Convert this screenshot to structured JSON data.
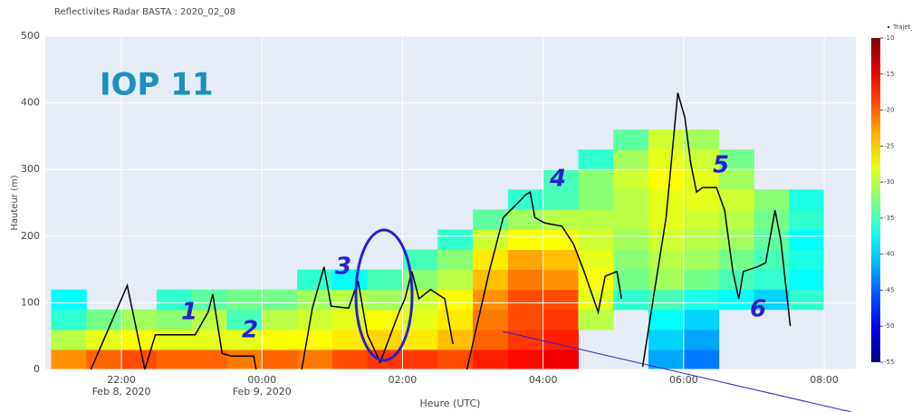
{
  "chart_data": {
    "type": "heatmap",
    "title": "Reflectivites Radar BASTA : 2020_02_08",
    "xlabel": "Heure (UTC)",
    "ylabel": "Hauteur (m)",
    "xlim": [
      "2020-02-08 20:55",
      "2020-02-09 08:27"
    ],
    "xticks": [
      {
        "value": "2020-02-08 22:00",
        "label": "22:00",
        "sublabel": "Feb 8, 2020"
      },
      {
        "value": "2020-02-09 00:00",
        "label": "00:00",
        "sublabel": "Feb 9, 2020"
      },
      {
        "value": "2020-02-09 02:00",
        "label": "02:00"
      },
      {
        "value": "2020-02-09 04:00",
        "label": "04:00"
      },
      {
        "value": "2020-02-09 06:00",
        "label": "06:00"
      },
      {
        "value": "2020-02-09 08:00",
        "label": "08:00"
      }
    ],
    "ylim": [
      0,
      500
    ],
    "yticks": [
      0,
      100,
      200,
      300,
      400,
      500
    ],
    "grid": true,
    "colorscale": "Jet",
    "zlim": [
      -55,
      -10
    ],
    "zticks": [
      -10,
      -15,
      -20,
      -25,
      -30,
      -35,
      -40,
      -45,
      -50,
      -55
    ],
    "x": [
      "2020-02-08 21:00",
      "2020-02-08 21:30",
      "2020-02-08 22:00",
      "2020-02-08 22:30",
      "2020-02-08 23:00",
      "2020-02-08 23:30",
      "2020-02-09 00:00",
      "2020-02-09 00:30",
      "2020-02-09 01:00",
      "2020-02-09 01:30",
      "2020-02-09 02:00",
      "2020-02-09 02:30",
      "2020-02-09 03:00",
      "2020-02-09 03:30",
      "2020-02-09 04:00",
      "2020-02-09 04:30",
      "2020-02-09 05:00",
      "2020-02-09 05:30",
      "2020-02-09 06:00",
      "2020-02-09 06:30",
      "2020-02-09 07:00",
      "2020-02-09 07:30"
    ],
    "y": [
      15,
      45,
      75,
      105,
      135,
      165,
      195,
      225,
      255,
      285,
      315,
      345
    ],
    "z": [
      [
        -22,
        -20,
        -19,
        -20,
        -20,
        -21,
        -20,
        -21,
        -19,
        -18,
        -18,
        -19,
        -17,
        -16,
        -15,
        null,
        null,
        -42,
        -44,
        null,
        null,
        null
      ],
      [
        -30,
        -28,
        -27,
        -28,
        -28,
        -28,
        -27,
        -27,
        -26,
        -25,
        -26,
        -24,
        -20,
        -18,
        -17,
        null,
        null,
        -40,
        -42,
        null,
        null,
        null
      ],
      [
        -36,
        -33,
        -31,
        -32,
        -30,
        -35,
        -30,
        -29,
        -28,
        -27,
        -28,
        -26,
        -21,
        -19,
        -18,
        -30,
        null,
        -38,
        -40,
        null,
        null,
        null
      ],
      [
        -38,
        null,
        null,
        -36,
        -34,
        -33,
        -33,
        -31,
        -30,
        -31,
        -29,
        -27,
        -22,
        -19,
        -19,
        -28,
        -36,
        -35,
        -37,
        -38,
        -40,
        -36
      ],
      [
        null,
        null,
        null,
        null,
        null,
        null,
        null,
        -36,
        -38,
        -35,
        -32,
        -30,
        -24,
        -21,
        -22,
        -27,
        -33,
        -31,
        -33,
        -35,
        -36,
        -38
      ],
      [
        null,
        null,
        null,
        null,
        null,
        null,
        null,
        null,
        null,
        null,
        -35,
        -32,
        -26,
        -23,
        -24,
        -28,
        -32,
        -30,
        -31,
        -33,
        -35,
        -37
      ],
      [
        null,
        null,
        null,
        null,
        null,
        null,
        null,
        null,
        null,
        null,
        null,
        -36,
        -29,
        -27,
        -27,
        -29,
        -31,
        -29,
        -30,
        -31,
        -34,
        -38
      ],
      [
        null,
        null,
        null,
        null,
        null,
        null,
        null,
        null,
        null,
        null,
        null,
        null,
        -34,
        -31,
        -30,
        -30,
        -30,
        -28,
        -29,
        -30,
        -33,
        -36
      ],
      [
        null,
        null,
        null,
        null,
        null,
        null,
        null,
        null,
        null,
        null,
        null,
        null,
        null,
        -36,
        -35,
        -32,
        -30,
        -28,
        -28,
        -29,
        -32,
        -37
      ],
      [
        null,
        null,
        null,
        null,
        null,
        null,
        null,
        null,
        null,
        null,
        null,
        null,
        null,
        null,
        -35,
        -32,
        -29,
        -27,
        -28,
        -31,
        null,
        null
      ],
      [
        null,
        null,
        null,
        null,
        null,
        null,
        null,
        null,
        null,
        null,
        null,
        null,
        null,
        null,
        null,
        -36,
        -31,
        -28,
        -29,
        -33,
        null,
        null
      ],
      [
        null,
        null,
        null,
        null,
        null,
        null,
        null,
        null,
        null,
        null,
        null,
        null,
        null,
        null,
        null,
        null,
        -34,
        -29,
        -31,
        null,
        null,
        null
      ]
    ],
    "series": [
      {
        "name": "Trajet_CD",
        "color": "#000000",
        "x": [
          "2020-02-08 21:34",
          "2020-02-08 22:05",
          "2020-02-08 22:20",
          "2020-02-08 22:29",
          "2020-02-08 22:43",
          "2020-02-08 23:03",
          "2020-02-08 23:14",
          "2020-02-08 23:18",
          "2020-02-08 23:26",
          "2020-02-08 23:34",
          "2020-02-08 23:53",
          "2020-02-08 23:55",
          "2020-02-09 00:15",
          "2020-02-09 00:34",
          "2020-02-09 00:43",
          "2020-02-09 00:53",
          "2020-02-09 00:59",
          "2020-02-09 01:14",
          "2020-02-09 01:22",
          "2020-02-09 01:30",
          "2020-02-09 01:41",
          "2020-02-09 01:57",
          "2020-02-09 02:02",
          "2020-02-09 02:08",
          "2020-02-09 02:14",
          "2020-02-09 02:24",
          "2020-02-09 02:36",
          "2020-02-09 02:43",
          "2020-02-09 02:50",
          "2020-02-09 02:55",
          "2020-02-09 03:14",
          "2020-02-09 03:26",
          "2020-02-09 03:38",
          "2020-02-09 03:45",
          "2020-02-09 03:49",
          "2020-02-09 03:53",
          "2020-02-09 04:01",
          "2020-02-09 04:16",
          "2020-02-09 04:26",
          "2020-02-09 04:35",
          "2020-02-09 04:47",
          "2020-02-09 04:53",
          "2020-02-09 05:03",
          "2020-02-09 05:07",
          "2020-02-09 05:15",
          "2020-02-09 05:25",
          "2020-02-09 05:34",
          "2020-02-09 05:45",
          "2020-02-09 05:55",
          "2020-02-09 06:01",
          "2020-02-09 06:06",
          "2020-02-09 06:11",
          "2020-02-09 06:16",
          "2020-02-09 06:28",
          "2020-02-09 06:35",
          "2020-02-09 06:42",
          "2020-02-09 06:47",
          "2020-02-09 06:51",
          "2020-02-09 07:03",
          "2020-02-09 07:10",
          "2020-02-09 07:18",
          "2020-02-09 07:23",
          "2020-02-09 07:31"
        ],
        "values": [
          0,
          126,
          0,
          52,
          52,
          52,
          86,
          113,
          24,
          20,
          20,
          0,
          null,
          0,
          92,
          154,
          95,
          92,
          133,
          52,
          11,
          86,
          106,
          147,
          106,
          120,
          106,
          38,
          null,
          0,
          147,
          228,
          249,
          262,
          266,
          228,
          220,
          215,
          188,
          147,
          86,
          140,
          147,
          106,
          null,
          4,
          106,
          228,
          415,
          378,
          310,
          266,
          273,
          273,
          239,
          147,
          106,
          147,
          154,
          160,
          239,
          193,
          65
        ]
      }
    ],
    "annotations": [
      "IOP 11",
      "1",
      "2",
      "3",
      "4",
      "5",
      "6"
    ]
  }
}
